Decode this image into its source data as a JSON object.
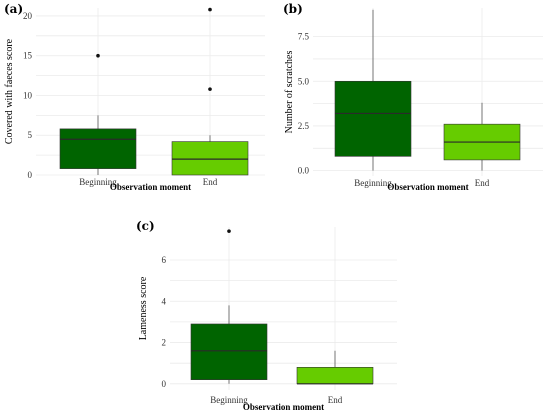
{
  "chart_data": [
    {
      "type": "boxplot",
      "panel_label": "(a)",
      "xlabel": "Observation moment",
      "ylabel": "Covered with faeces score",
      "ylim": [
        0,
        21
      ],
      "yticks": [
        0,
        5,
        10,
        15,
        20
      ],
      "ytick_labels": [
        "0",
        "5",
        "10",
        "15",
        "20"
      ],
      "grid": true,
      "categories": [
        "Beginning",
        "End"
      ],
      "boxes": [
        {
          "category": "Beginning",
          "color": "#006400",
          "whisker_low": 0,
          "q1": 0.8,
          "median": 4.5,
          "q3": 5.8,
          "whisker_high": 7.5,
          "outliers": [
            15
          ]
        },
        {
          "category": "End",
          "color": "#66cc00",
          "whisker_low": 0,
          "q1": 0,
          "median": 2.0,
          "q3": 4.2,
          "whisker_high": 5.0,
          "outliers": [
            10.8,
            20.8
          ]
        }
      ]
    },
    {
      "type": "boxplot",
      "panel_label": "(b)",
      "xlabel": "Observation moment",
      "ylabel": "Number of scratches",
      "ylim": [
        -0.3,
        9.1
      ],
      "yticks": [
        0,
        2.5,
        5.0,
        7.5
      ],
      "ytick_labels": [
        "0.0",
        "2.5",
        "5.0",
        "7.5"
      ],
      "grid": true,
      "categories": [
        "Beginning",
        "End"
      ],
      "boxes": [
        {
          "category": "Beginning",
          "color": "#006400",
          "whisker_low": 0,
          "q1": 0.8,
          "median": 3.2,
          "q3": 5.0,
          "whisker_high": 9.0,
          "outliers": []
        },
        {
          "category": "End",
          "color": "#66cc00",
          "whisker_low": 0,
          "q1": 0.6,
          "median": 1.6,
          "q3": 2.6,
          "whisker_high": 3.8,
          "outliers": []
        }
      ]
    },
    {
      "type": "boxplot",
      "panel_label": "(c)",
      "xlabel": "Observation moment",
      "ylabel": "Lameness score",
      "ylim": [
        -0.3,
        7.6
      ],
      "yticks": [
        0,
        2,
        4,
        6
      ],
      "ytick_labels": [
        "0",
        "2",
        "4",
        "6"
      ],
      "grid": true,
      "categories": [
        "Beginning",
        "End"
      ],
      "boxes": [
        {
          "category": "Beginning",
          "color": "#006400",
          "whisker_low": 0,
          "q1": 0.2,
          "median": 1.6,
          "q3": 2.9,
          "whisker_high": 3.8,
          "outliers": [
            7.4
          ]
        },
        {
          "category": "End",
          "color": "#66cc00",
          "whisker_low": 0,
          "q1": 0,
          "median": 0,
          "q3": 0.8,
          "whisker_high": 1.6,
          "outliers": []
        }
      ]
    }
  ]
}
